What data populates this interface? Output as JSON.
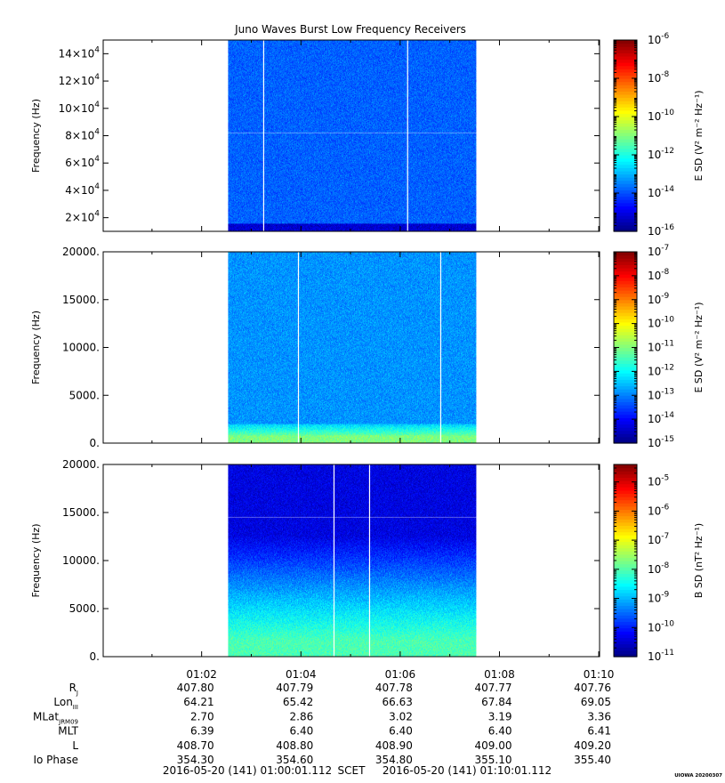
{
  "title": "Juno Waves Burst Low Frequency Receivers",
  "chart_data": [
    {
      "type": "heatmap",
      "name": "panel-1",
      "ylabel": "Frequency (Hz)",
      "ylim": [
        10000,
        150000
      ],
      "yticks": [
        {
          "value": 20000,
          "mant": "2×10",
          "exp": "4"
        },
        {
          "value": 40000,
          "mant": "4×10",
          "exp": "4"
        },
        {
          "value": 60000,
          "mant": "6×10",
          "exp": "4"
        },
        {
          "value": 80000,
          "mant": "8×10",
          "exp": "4"
        },
        {
          "value": 100000,
          "mant": "10×10",
          "exp": "4"
        },
        {
          "value": 120000,
          "mant": "12×10",
          "exp": "4"
        },
        {
          "value": 140000,
          "mant": "14×10",
          "exp": "4"
        }
      ],
      "data_start": "01:02:32",
      "data_end": "01:07:32",
      "gaps": [
        "01:03:15",
        "01:06:09"
      ],
      "bright_line_y": 82000,
      "colorbar": {
        "label": "E SD (V² m⁻² Hz⁻¹)",
        "log_range": [
          -16,
          -6
        ],
        "ticks": [
          {
            "mant": "10",
            "exp": "-6",
            "log": -6
          },
          {
            "mant": "10",
            "exp": "-8",
            "log": -8
          },
          {
            "mant": "10",
            "exp": "-10",
            "log": -10
          },
          {
            "mant": "10",
            "exp": "-12",
            "log": -12
          },
          {
            "mant": "10",
            "exp": "-14",
            "log": -14
          },
          {
            "mant": "10",
            "exp": "-16",
            "log": -16
          }
        ]
      },
      "background_level": 0.22,
      "low_band_level": 0.08
    },
    {
      "type": "heatmap",
      "name": "panel-2",
      "ylabel": "Frequency (Hz)",
      "ylim": [
        0,
        20000
      ],
      "yticks": [
        {
          "value": 0,
          "label": "0."
        },
        {
          "value": 5000,
          "label": "5000."
        },
        {
          "value": 10000,
          "label": "10000."
        },
        {
          "value": 15000,
          "label": "15000."
        },
        {
          "value": 20000,
          "label": "20000."
        }
      ],
      "data_start": "01:02:32",
      "data_end": "01:07:32",
      "gaps": [
        "01:03:57",
        "01:06:49"
      ],
      "colorbar": {
        "label": "E SD (V² m⁻² Hz⁻¹)",
        "log_range": [
          -15,
          -7
        ],
        "ticks": [
          {
            "mant": "10",
            "exp": "-7",
            "log": -7
          },
          {
            "mant": "10",
            "exp": "-8",
            "log": -8
          },
          {
            "mant": "10",
            "exp": "-9",
            "log": -9
          },
          {
            "mant": "10",
            "exp": "-10",
            "log": -10
          },
          {
            "mant": "10",
            "exp": "-11",
            "log": -11
          },
          {
            "mant": "10",
            "exp": "-12",
            "log": -12
          },
          {
            "mant": "10",
            "exp": "-13",
            "log": -13
          },
          {
            "mant": "10",
            "exp": "-14",
            "log": -14
          },
          {
            "mant": "10",
            "exp": "-15",
            "log": -15
          }
        ]
      },
      "background_level": 0.27,
      "low_band_level": 0.5
    },
    {
      "type": "heatmap",
      "name": "panel-3",
      "ylabel": "Frequency (Hz)",
      "ylim": [
        0,
        20000
      ],
      "yticks": [
        {
          "value": 0,
          "label": "0."
        },
        {
          "value": 5000,
          "label": "5000."
        },
        {
          "value": 10000,
          "label": "10000."
        },
        {
          "value": 15000,
          "label": "15000."
        },
        {
          "value": 20000,
          "label": "20000."
        }
      ],
      "data_start": "01:02:32",
      "data_end": "01:07:32",
      "gaps": [
        "01:04:40",
        "01:05:23"
      ],
      "bright_line_y": 14500,
      "colorbar": {
        "label": "B SD (nT² Hz⁻¹)",
        "log_range": [
          -11,
          -4.4
        ],
        "ticks": [
          {
            "mant": "10",
            "exp": "-5",
            "log": -5
          },
          {
            "mant": "10",
            "exp": "-6",
            "log": -6
          },
          {
            "mant": "10",
            "exp": "-7",
            "log": -7
          },
          {
            "mant": "10",
            "exp": "-8",
            "log": -8
          },
          {
            "mant": "10",
            "exp": "-9",
            "log": -9
          },
          {
            "mant": "10",
            "exp": "-10",
            "log": -10
          },
          {
            "mant": "10",
            "exp": "-11",
            "log": -11
          }
        ]
      },
      "background_level": 0.1,
      "low_band_level": 0.45
    }
  ],
  "x_axis": {
    "range": [
      "01:00:01",
      "01:10:01"
    ],
    "labels": [
      {
        "time": "01:02:00",
        "label": "01:02"
      },
      {
        "time": "01:04:00",
        "label": "01:04"
      },
      {
        "time": "01:06:00",
        "label": "01:06"
      },
      {
        "time": "01:08:00",
        "label": "01:08"
      },
      {
        "time": "01:10:00",
        "label": "01:10"
      }
    ]
  },
  "ephemeris": {
    "rows": [
      {
        "label": "R",
        "sub": "J",
        "values": [
          "407.80",
          "407.79",
          "407.78",
          "407.77",
          "407.76"
        ]
      },
      {
        "label": "Lon",
        "sub": "III",
        "values": [
          "64.21",
          "65.42",
          "66.63",
          "67.84",
          "69.05"
        ]
      },
      {
        "label": "MLat",
        "sub": "JRM09",
        "values": [
          "2.70",
          "2.86",
          "3.02",
          "3.19",
          "3.36"
        ]
      },
      {
        "label": "MLT",
        "sub": "",
        "values": [
          "6.39",
          "6.40",
          "6.40",
          "6.40",
          "6.41"
        ]
      },
      {
        "label": "L",
        "sub": "",
        "values": [
          "408.70",
          "408.80",
          "408.90",
          "409.00",
          "409.20"
        ]
      },
      {
        "label": "Io Phase",
        "sub": "",
        "values": [
          "354.30",
          "354.60",
          "354.80",
          "355.10",
          "355.40"
        ]
      }
    ]
  },
  "footer": {
    "start": "2016-05-20 (141) 01:00:01.112",
    "scet": "SCET",
    "end": "2016-05-20 (141) 01:10:01.112",
    "stamp": "UIOWA 20200307"
  },
  "colors": {
    "frame": "#000000",
    "gap": "#ffffff"
  }
}
